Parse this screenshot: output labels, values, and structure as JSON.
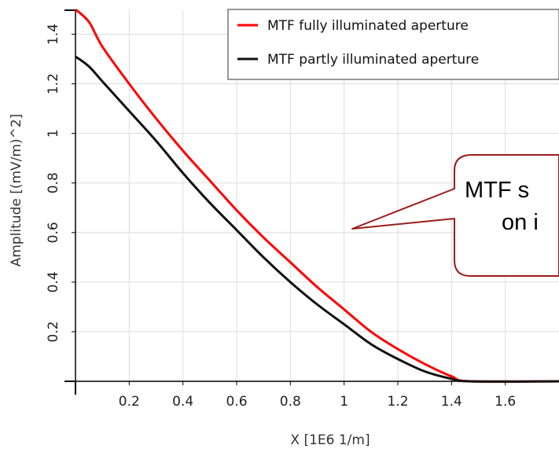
{
  "chart_data": {
    "type": "line",
    "xlabel": "X [1E6 1/m]",
    "ylabel": "Amplitude [(mV/m)^2]",
    "xlim": [
      0,
      1.8
    ],
    "ylim": [
      0,
      1.5
    ],
    "xticks": [
      0.2,
      0.4,
      0.6,
      0.8,
      1,
      1.2,
      1.4,
      1.6
    ],
    "xtick_labels": [
      "0.2",
      "0.4",
      "0.6",
      "0.8",
      "1",
      "1.2",
      "1.4",
      "1.6"
    ],
    "yticks": [
      0.2,
      0.4,
      0.6,
      0.8,
      1,
      1.2,
      1.4
    ],
    "ytick_labels": [
      "0.2",
      "0.4",
      "0.6",
      "0.8",
      "1",
      "1.2",
      "1.4"
    ],
    "grid": true,
    "legend_position": "top-right",
    "series": [
      {
        "name": "MTF fully illuminated aperture",
        "color": "#ff0000",
        "x": [
          0,
          0.05,
          0.1,
          0.2,
          0.3,
          0.4,
          0.5,
          0.6,
          0.7,
          0.8,
          0.9,
          1.0,
          1.1,
          1.2,
          1.3,
          1.4,
          1.47,
          1.8
        ],
        "y": [
          1.5,
          1.45,
          1.35,
          1.2,
          1.06,
          0.93,
          0.81,
          0.69,
          0.58,
          0.48,
          0.38,
          0.29,
          0.2,
          0.13,
          0.07,
          0.02,
          0,
          0
        ]
      },
      {
        "name": "MTF partly illuminated aperture",
        "color": "#111111",
        "x": [
          0,
          0.05,
          0.1,
          0.2,
          0.3,
          0.4,
          0.5,
          0.6,
          0.7,
          0.8,
          0.9,
          1.0,
          1.1,
          1.2,
          1.3,
          1.4,
          1.47,
          1.8
        ],
        "y": [
          1.31,
          1.27,
          1.21,
          1.09,
          0.97,
          0.84,
          0.72,
          0.61,
          0.5,
          0.4,
          0.31,
          0.23,
          0.15,
          0.09,
          0.04,
          0.01,
          0,
          0
        ]
      }
    ],
    "annotations": [
      {
        "text_line1": "MTF s",
        "text_line2": "on i"
      }
    ]
  },
  "colors": {
    "grid": "#dcdcdc",
    "callout_border": "#9b1c1c",
    "axis": "#000000"
  }
}
